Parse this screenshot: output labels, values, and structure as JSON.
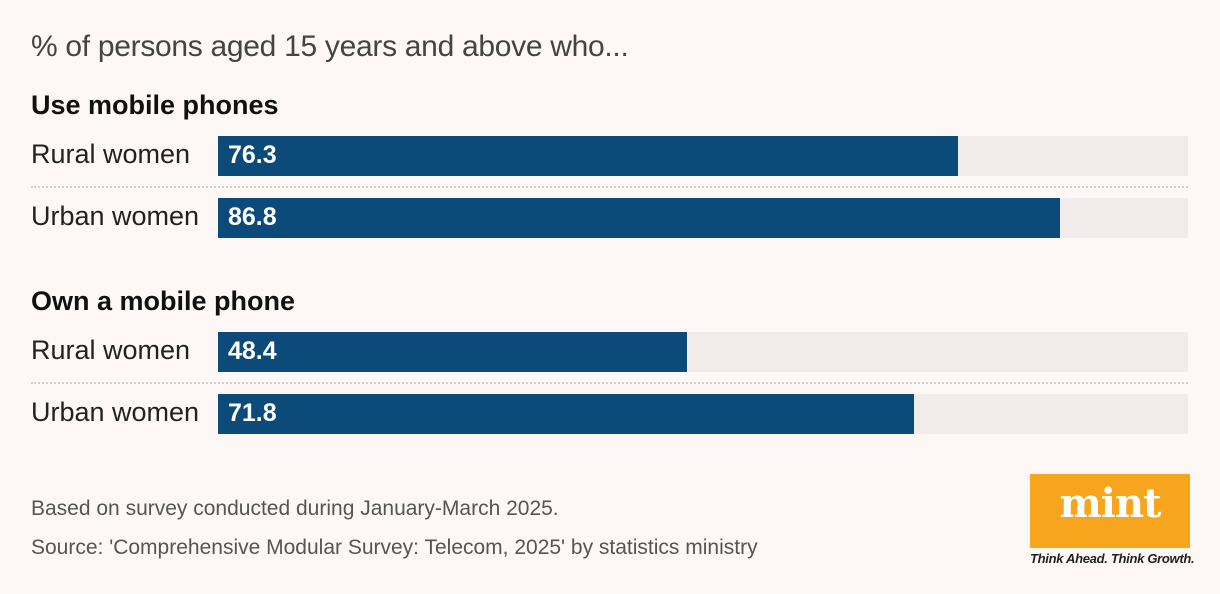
{
  "chart_data": {
    "type": "bar",
    "orientation": "horizontal",
    "subtitle": "% of persons aged 15 years and above who...",
    "xlim": [
      0,
      100
    ],
    "bar_color": "#0c4a7a",
    "track_color": "#f1ecea",
    "groups": [
      {
        "title": "Use mobile phones",
        "categories": [
          "Rural women",
          "Urban women"
        ],
        "values": [
          76.3,
          86.8
        ]
      },
      {
        "title": "Own a mobile phone",
        "categories": [
          "Rural women",
          "Urban women"
        ],
        "values": [
          48.4,
          71.8
        ]
      }
    ]
  },
  "footer": {
    "note": "Based on survey conducted during January-March 2025.",
    "source": "Source: 'Comprehensive Modular Survey: Telecom, 2025' by statistics ministry"
  },
  "brand": {
    "logo_text": "mint",
    "tagline": "Think Ahead. Think Growth.",
    "logo_color": "#f7a51d"
  }
}
